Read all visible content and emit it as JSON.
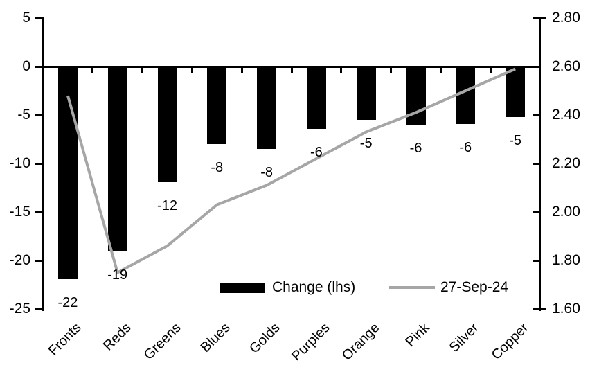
{
  "chart_data": {
    "type": "bar+line combo",
    "categories": [
      "Fronts",
      "Reds",
      "Greens",
      "Blues",
      "Golds",
      "Purples",
      "Orange",
      "Pink",
      "Silver",
      "Copper"
    ],
    "series": [
      {
        "name": "Change (lhs)",
        "type": "bar",
        "axis": "left",
        "color": "#000000",
        "values": [
          -21.9,
          -19.1,
          -11.9,
          -8.0,
          -8.5,
          -6.4,
          -5.5,
          -6.0,
          -5.9,
          -5.2
        ],
        "data_labels": [
          "-22",
          "-19",
          "-12",
          "-8",
          "-8",
          "-6",
          "-5",
          "-6",
          "-6",
          "-5"
        ]
      },
      {
        "name": "27-Sep-24",
        "type": "line",
        "axis": "right",
        "color": "#a6a6a6",
        "values": [
          2.48,
          1.75,
          1.86,
          2.03,
          2.11,
          2.22,
          2.33,
          2.41,
          2.5,
          2.59
        ]
      }
    ],
    "left_axis": {
      "min": -25,
      "max": 5,
      "tick_labels": [
        "5",
        "0",
        "-5",
        "-10",
        "-15",
        "-20",
        "-25"
      ]
    },
    "right_axis": {
      "min": 1.6,
      "max": 2.8,
      "tick_labels": [
        "2.80",
        "2.60",
        "2.40",
        "2.20",
        "2.00",
        "1.80",
        "1.60"
      ]
    },
    "legend": [
      {
        "swatch": "bar",
        "label": "Change (lhs)"
      },
      {
        "swatch": "line",
        "label": "27-Sep-24"
      }
    ],
    "title": "",
    "grid": false,
    "legend_position": "inside-bottom-center"
  }
}
